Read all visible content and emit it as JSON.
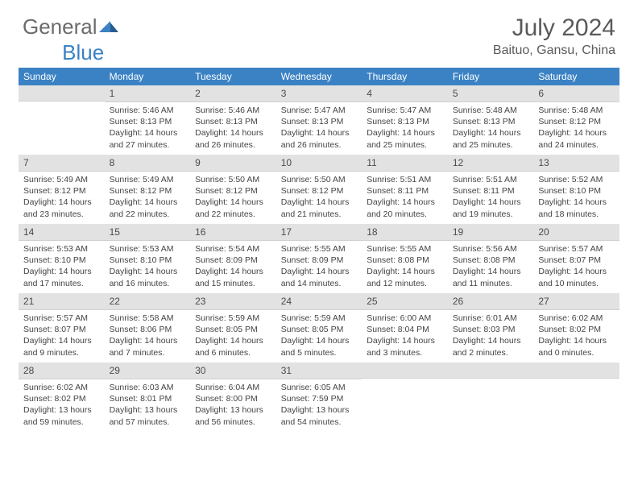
{
  "brand": {
    "part1": "General",
    "part2": "Blue"
  },
  "title": "July 2024",
  "subtitle": "Baituo, Gansu, China",
  "colors": {
    "header_bg": "#3b82c4",
    "header_text": "#ffffff",
    "daynum_bg": "#e2e2e2",
    "divider": "#3b82c4",
    "text": "#444444",
    "title_color": "#5a5a5a"
  },
  "weekdays": [
    "Sunday",
    "Monday",
    "Tuesday",
    "Wednesday",
    "Thursday",
    "Friday",
    "Saturday"
  ],
  "weeks": [
    [
      {
        "n": "",
        "sunrise": "",
        "sunset": "",
        "daylight": ""
      },
      {
        "n": "1",
        "sunrise": "5:46 AM",
        "sunset": "8:13 PM",
        "daylight": "14 hours and 27 minutes."
      },
      {
        "n": "2",
        "sunrise": "5:46 AM",
        "sunset": "8:13 PM",
        "daylight": "14 hours and 26 minutes."
      },
      {
        "n": "3",
        "sunrise": "5:47 AM",
        "sunset": "8:13 PM",
        "daylight": "14 hours and 26 minutes."
      },
      {
        "n": "4",
        "sunrise": "5:47 AM",
        "sunset": "8:13 PM",
        "daylight": "14 hours and 25 minutes."
      },
      {
        "n": "5",
        "sunrise": "5:48 AM",
        "sunset": "8:13 PM",
        "daylight": "14 hours and 25 minutes."
      },
      {
        "n": "6",
        "sunrise": "5:48 AM",
        "sunset": "8:12 PM",
        "daylight": "14 hours and 24 minutes."
      }
    ],
    [
      {
        "n": "7",
        "sunrise": "5:49 AM",
        "sunset": "8:12 PM",
        "daylight": "14 hours and 23 minutes."
      },
      {
        "n": "8",
        "sunrise": "5:49 AM",
        "sunset": "8:12 PM",
        "daylight": "14 hours and 22 minutes."
      },
      {
        "n": "9",
        "sunrise": "5:50 AM",
        "sunset": "8:12 PM",
        "daylight": "14 hours and 22 minutes."
      },
      {
        "n": "10",
        "sunrise": "5:50 AM",
        "sunset": "8:12 PM",
        "daylight": "14 hours and 21 minutes."
      },
      {
        "n": "11",
        "sunrise": "5:51 AM",
        "sunset": "8:11 PM",
        "daylight": "14 hours and 20 minutes."
      },
      {
        "n": "12",
        "sunrise": "5:51 AM",
        "sunset": "8:11 PM",
        "daylight": "14 hours and 19 minutes."
      },
      {
        "n": "13",
        "sunrise": "5:52 AM",
        "sunset": "8:10 PM",
        "daylight": "14 hours and 18 minutes."
      }
    ],
    [
      {
        "n": "14",
        "sunrise": "5:53 AM",
        "sunset": "8:10 PM",
        "daylight": "14 hours and 17 minutes."
      },
      {
        "n": "15",
        "sunrise": "5:53 AM",
        "sunset": "8:10 PM",
        "daylight": "14 hours and 16 minutes."
      },
      {
        "n": "16",
        "sunrise": "5:54 AM",
        "sunset": "8:09 PM",
        "daylight": "14 hours and 15 minutes."
      },
      {
        "n": "17",
        "sunrise": "5:55 AM",
        "sunset": "8:09 PM",
        "daylight": "14 hours and 14 minutes."
      },
      {
        "n": "18",
        "sunrise": "5:55 AM",
        "sunset": "8:08 PM",
        "daylight": "14 hours and 12 minutes."
      },
      {
        "n": "19",
        "sunrise": "5:56 AM",
        "sunset": "8:08 PM",
        "daylight": "14 hours and 11 minutes."
      },
      {
        "n": "20",
        "sunrise": "5:57 AM",
        "sunset": "8:07 PM",
        "daylight": "14 hours and 10 minutes."
      }
    ],
    [
      {
        "n": "21",
        "sunrise": "5:57 AM",
        "sunset": "8:07 PM",
        "daylight": "14 hours and 9 minutes."
      },
      {
        "n": "22",
        "sunrise": "5:58 AM",
        "sunset": "8:06 PM",
        "daylight": "14 hours and 7 minutes."
      },
      {
        "n": "23",
        "sunrise": "5:59 AM",
        "sunset": "8:05 PM",
        "daylight": "14 hours and 6 minutes."
      },
      {
        "n": "24",
        "sunrise": "5:59 AM",
        "sunset": "8:05 PM",
        "daylight": "14 hours and 5 minutes."
      },
      {
        "n": "25",
        "sunrise": "6:00 AM",
        "sunset": "8:04 PM",
        "daylight": "14 hours and 3 minutes."
      },
      {
        "n": "26",
        "sunrise": "6:01 AM",
        "sunset": "8:03 PM",
        "daylight": "14 hours and 2 minutes."
      },
      {
        "n": "27",
        "sunrise": "6:02 AM",
        "sunset": "8:02 PM",
        "daylight": "14 hours and 0 minutes."
      }
    ],
    [
      {
        "n": "28",
        "sunrise": "6:02 AM",
        "sunset": "8:02 PM",
        "daylight": "13 hours and 59 minutes."
      },
      {
        "n": "29",
        "sunrise": "6:03 AM",
        "sunset": "8:01 PM",
        "daylight": "13 hours and 57 minutes."
      },
      {
        "n": "30",
        "sunrise": "6:04 AM",
        "sunset": "8:00 PM",
        "daylight": "13 hours and 56 minutes."
      },
      {
        "n": "31",
        "sunrise": "6:05 AM",
        "sunset": "7:59 PM",
        "daylight": "13 hours and 54 minutes."
      },
      {
        "n": "",
        "sunrise": "",
        "sunset": "",
        "daylight": ""
      },
      {
        "n": "",
        "sunrise": "",
        "sunset": "",
        "daylight": ""
      },
      {
        "n": "",
        "sunrise": "",
        "sunset": "",
        "daylight": ""
      }
    ]
  ],
  "labels": {
    "sunrise": "Sunrise:",
    "sunset": "Sunset:",
    "daylight": "Daylight:"
  }
}
